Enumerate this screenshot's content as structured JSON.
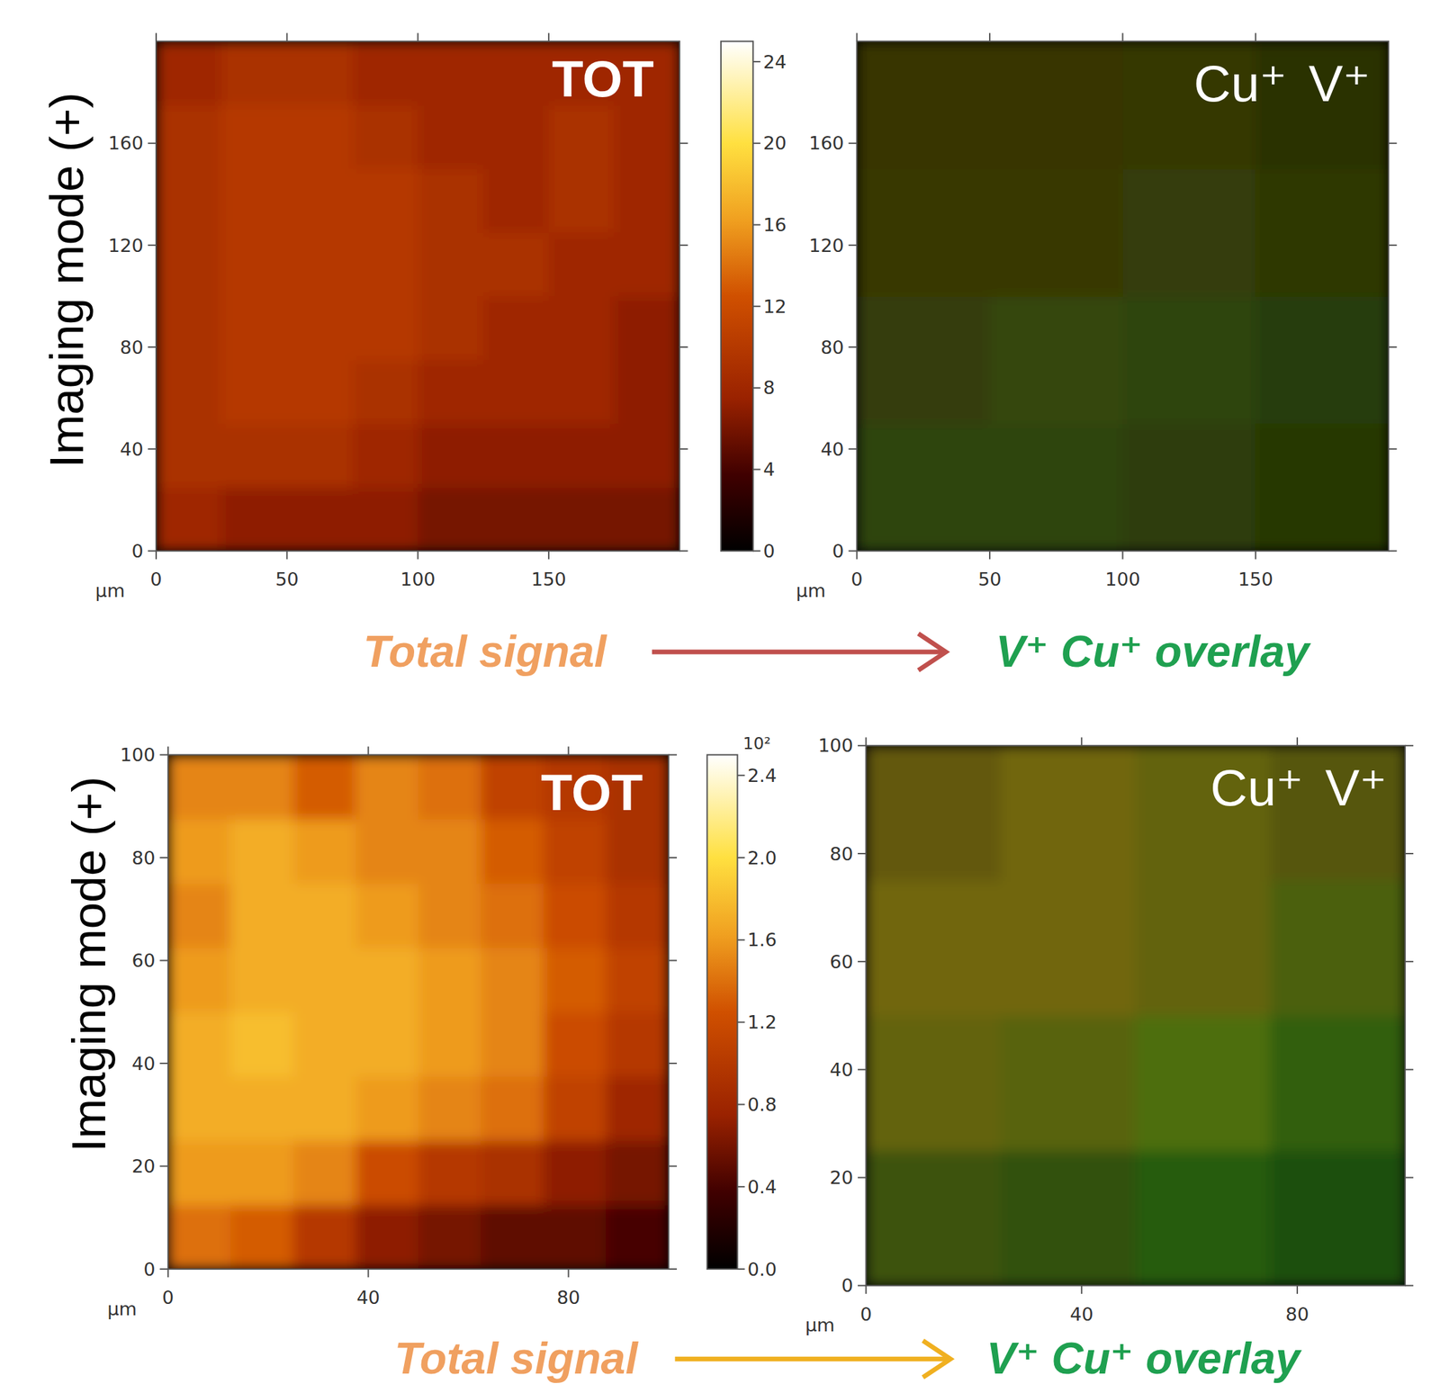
{
  "chart_data": [
    {
      "type": "heatmap",
      "title": "TOT",
      "xlabel": "µm",
      "xlim": [
        0,
        200
      ],
      "xticks": [
        0,
        50,
        100,
        150
      ],
      "ylim": [
        0,
        200
      ],
      "yticks": [
        0,
        40,
        80,
        120,
        160
      ],
      "x": [
        12.5,
        37.5,
        62.5,
        87.5,
        112.5,
        137.5,
        162.5,
        187.5
      ],
      "y": [
        12.5,
        37.5,
        62.5,
        87.5,
        112.5,
        137.5,
        162.5,
        187.5
      ],
      "z": [
        [
          8,
          7,
          7,
          7,
          6,
          6,
          6,
          6
        ],
        [
          9,
          9,
          9,
          8,
          7,
          7,
          7,
          7
        ],
        [
          9,
          10,
          10,
          9,
          8,
          8,
          8,
          7
        ],
        [
          9,
          10,
          10,
          10,
          9,
          8,
          8,
          7
        ],
        [
          9,
          10,
          10,
          10,
          9,
          9,
          8,
          8
        ],
        [
          9,
          10,
          10,
          10,
          9,
          8,
          9,
          8
        ],
        [
          9,
          10,
          10,
          9,
          8,
          8,
          9,
          8
        ],
        [
          8,
          9,
          9,
          8,
          8,
          8,
          8,
          8
        ]
      ],
      "colorbar_lim": [
        0,
        25
      ],
      "colorbar_ticks": [
        0,
        4,
        8,
        12,
        16,
        20,
        24
      ]
    },
    {
      "type": "overlay",
      "xlabel": "µm",
      "legend": "top-right",
      "xlim": [
        0,
        200
      ],
      "xticks": [
        0,
        50,
        100,
        150
      ],
      "ylim": [
        0,
        200
      ],
      "yticks": [
        0,
        40,
        80,
        120,
        160
      ],
      "x": [
        25,
        75,
        125,
        175
      ],
      "y": [
        25,
        75,
        125,
        175
      ],
      "series": [
        {
          "name": "Cu⁺",
          "color": "#ff2000",
          "cells": [
            [
              0.15,
              0.15,
              0.15,
              0.12
            ],
            [
              0.18,
              0.18,
              0.15,
              0.13
            ],
            [
              0.2,
              0.2,
              0.18,
              0.15
            ],
            [
              0.2,
              0.2,
              0.18,
              0.15
            ]
          ]
        },
        {
          "name": "V⁺",
          "color": "#20ff20",
          "cells": [
            [
              0.25,
              0.25,
              0.22,
              0.2
            ],
            [
              0.22,
              0.25,
              0.25,
              0.22
            ],
            [
              0.2,
              0.2,
              0.22,
              0.2
            ],
            [
              0.18,
              0.18,
              0.2,
              0.18
            ]
          ]
        }
      ]
    },
    {
      "type": "heatmap",
      "title": "TOT",
      "xlabel": "µm",
      "xlim": [
        0,
        100
      ],
      "xticks": [
        0,
        40,
        80
      ],
      "ylim": [
        0,
        100
      ],
      "yticks": [
        0,
        20,
        40,
        60,
        80,
        100
      ],
      "x": [
        6.25,
        18.75,
        31.25,
        43.75,
        56.25,
        68.75,
        81.25,
        93.75
      ],
      "y": [
        6.25,
        18.75,
        31.25,
        43.75,
        56.25,
        68.75,
        81.25,
        93.75
      ],
      "z": [
        [
          140,
          130,
          100,
          70,
          60,
          50,
          50,
          40
        ],
        [
          160,
          160,
          150,
          120,
          100,
          90,
          70,
          60
        ],
        [
          170,
          170,
          170,
          160,
          150,
          140,
          110,
          80
        ],
        [
          170,
          180,
          170,
          170,
          160,
          150,
          120,
          100
        ],
        [
          160,
          170,
          170,
          170,
          160,
          150,
          130,
          110
        ],
        [
          150,
          170,
          170,
          160,
          150,
          140,
          120,
          100
        ],
        [
          160,
          170,
          160,
          150,
          150,
          130,
          110,
          90
        ],
        [
          150,
          150,
          130,
          150,
          140,
          110,
          100,
          90
        ]
      ],
      "colorbar_lim": [
        0,
        250
      ],
      "colorbar_label": "10²",
      "colorbar_ticks": [
        {
          "value": 0,
          "label": "0.0"
        },
        {
          "value": 40,
          "label": "0.4"
        },
        {
          "value": 80,
          "label": "0.8"
        },
        {
          "value": 120,
          "label": "1.2"
        },
        {
          "value": 160,
          "label": "1.6"
        },
        {
          "value": 200,
          "label": "2.0"
        },
        {
          "value": 240,
          "label": "2.4"
        }
      ]
    },
    {
      "type": "overlay",
      "xlabel": "µm",
      "legend": "top-right",
      "xlim": [
        0,
        100
      ],
      "xticks": [
        0,
        40,
        80
      ],
      "ylim": [
        0,
        100
      ],
      "yticks": [
        0,
        20,
        40,
        60,
        80,
        100
      ],
      "x": [
        12.5,
        37.5,
        62.5,
        87.5
      ],
      "y": [
        12.5,
        37.5,
        62.5,
        87.5
      ],
      "series": [
        {
          "name": "Cu⁺",
          "color": "#ff2000",
          "cells": [
            [
              0.2,
              0.15,
              0.1,
              0.08
            ],
            [
              0.35,
              0.3,
              0.25,
              0.15
            ],
            [
              0.4,
              0.4,
              0.35,
              0.25
            ],
            [
              0.35,
              0.4,
              0.35,
              0.3
            ]
          ]
        },
        {
          "name": "V⁺",
          "color": "#20ff20",
          "cells": [
            [
              0.3,
              0.3,
              0.35,
              0.3
            ],
            [
              0.35,
              0.35,
              0.4,
              0.35
            ],
            [
              0.35,
              0.35,
              0.35,
              0.35
            ],
            [
              0.3,
              0.35,
              0.35,
              0.3
            ]
          ]
        }
      ]
    }
  ],
  "figure": {
    "row_labels": [
      "Imaging mode (+)",
      "Imaging mode (+)"
    ],
    "flows": [
      {
        "from": "Total signal",
        "to": "V⁺ Cu⁺ overlay"
      },
      {
        "from": "Total signal",
        "to": "V⁺ Cu⁺ overlay"
      }
    ]
  }
}
